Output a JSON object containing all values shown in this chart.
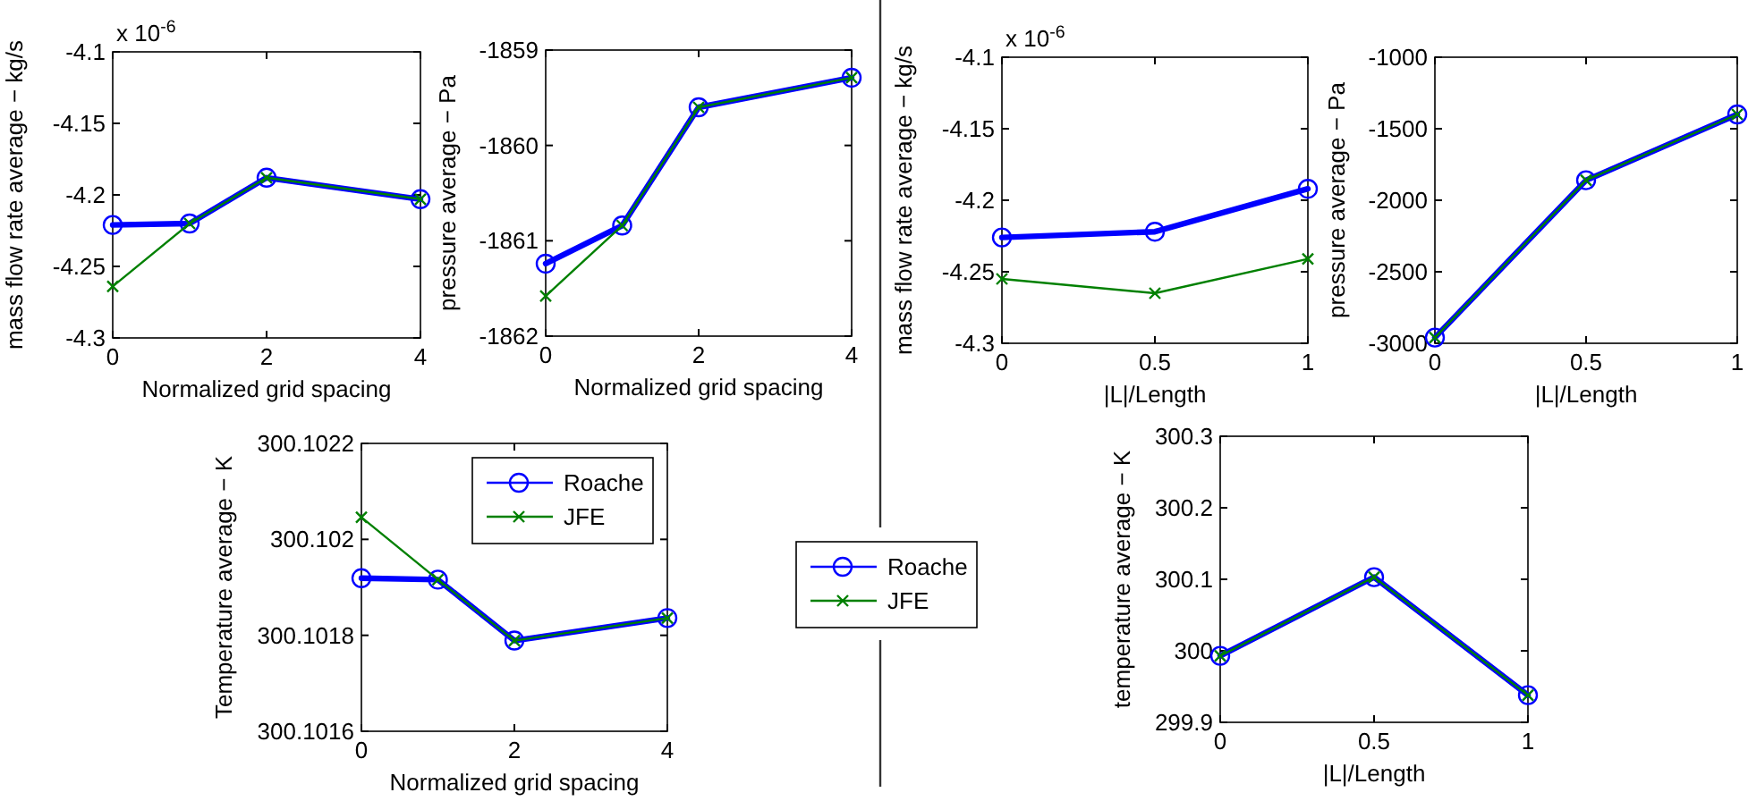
{
  "chart_data": [
    {
      "type": "line",
      "x": [
        0,
        1,
        2,
        4
      ],
      "xlim": [
        0,
        4
      ],
      "xticks": [
        0,
        2,
        4
      ],
      "ylim": [
        -4.3,
        -4.1
      ],
      "yticks": [
        -4.3,
        -4.25,
        -4.2,
        -4.15,
        -4.1
      ],
      "xlabel": "Normalized grid spacing",
      "ylabel": "mass flow rate average − kg/s",
      "annotations": [
        "x 10$^{-6}$"
      ],
      "series": [
        {
          "color": "#0000ff",
          "marker": "circle",
          "values": [
            -4.221,
            -4.22,
            -4.188,
            -4.203
          ]
        },
        {
          "color": "#008000",
          "marker": "cross",
          "values": [
            -4.264,
            -4.22,
            -4.188,
            -4.203
          ]
        }
      ]
    },
    {
      "type": "line",
      "x": [
        0,
        1,
        2,
        4
      ],
      "xlim": [
        0,
        4
      ],
      "xticks": [
        0,
        2,
        4
      ],
      "ylim": [
        -1862,
        -1859
      ],
      "yticks": [
        -1862,
        -1861,
        -1860,
        -1859
      ],
      "xlabel": "Normalized grid spacing",
      "ylabel": "pressure average − Pa",
      "series": [
        {
          "color": "#0000ff",
          "marker": "circle",
          "values": [
            -1861.24,
            -1860.84,
            -1859.6,
            -1859.29
          ]
        },
        {
          "color": "#008000",
          "marker": "cross",
          "values": [
            -1861.58,
            -1860.84,
            -1859.6,
            -1859.29
          ]
        }
      ]
    },
    {
      "type": "line",
      "x": [
        0,
        0.5,
        1
      ],
      "xlim": [
        0,
        1
      ],
      "xticks": [
        0,
        0.5,
        1
      ],
      "ylim": [
        -4.3,
        -4.1
      ],
      "yticks": [
        -4.3,
        -4.25,
        -4.2,
        -4.15,
        -4.1
      ],
      "xlabel": "|L|/Length",
      "ylabel": "mass flow rate average − kg/s",
      "annotations": [
        "x 10$^{-6}$"
      ],
      "series": [
        {
          "color": "#0000ff",
          "marker": "circle",
          "values": [
            -4.226,
            -4.222,
            -4.192
          ]
        },
        {
          "color": "#008000",
          "marker": "cross",
          "values": [
            -4.255,
            -4.265,
            -4.241
          ]
        }
      ]
    },
    {
      "type": "line",
      "x": [
        0,
        0.5,
        1
      ],
      "xlim": [
        0,
        1
      ],
      "xticks": [
        0,
        0.5,
        1
      ],
      "ylim": [
        -3000,
        -1000
      ],
      "yticks": [
        -3000,
        -2500,
        -2000,
        -1500,
        -1000
      ],
      "xlabel": "|L|/Length",
      "ylabel": "pressure average − Pa",
      "series": [
        {
          "color": "#0000ff",
          "marker": "circle",
          "values": [
            -2960,
            -1860,
            -1400
          ]
        },
        {
          "color": "#008000",
          "marker": "cross",
          "values": [
            -2960,
            -1860,
            -1400
          ]
        }
      ]
    },
    {
      "type": "line",
      "x": [
        0,
        1,
        2,
        4
      ],
      "xlim": [
        0,
        4
      ],
      "xticks": [
        0,
        2,
        4
      ],
      "ylim": [
        300.1016,
        300.1022
      ],
      "yticks": [
        300.1016,
        300.1018,
        300.102,
        300.1022
      ],
      "xlabel": "Normalized grid spacing",
      "ylabel": "Temperature average − K",
      "legend": "top right",
      "series": [
        {
          "name": "Roache",
          "color": "#0000ff",
          "marker": "circle",
          "values": [
            300.101919,
            300.101916,
            300.101789,
            300.101836
          ]
        },
        {
          "name": "JFE",
          "color": "#008000",
          "marker": "cross",
          "values": [
            300.102046,
            300.101916,
            300.101789,
            300.101836
          ]
        }
      ]
    },
    {
      "type": "line",
      "x": [
        0,
        0.5,
        1
      ],
      "xlim": [
        0,
        1
      ],
      "xticks": [
        0,
        0.5,
        1
      ],
      "ylim": [
        299.9,
        300.3
      ],
      "yticks": [
        299.9,
        300,
        300.1,
        300.2,
        300.3
      ],
      "xlabel": "|L|/Length",
      "ylabel": "temperature average − K",
      "legend": "left",
      "series": [
        {
          "name": "Roache",
          "color": "#0000ff",
          "marker": "circle",
          "values": [
            299.993,
            300.103,
            299.938
          ]
        },
        {
          "name": "JFE",
          "color": "#008000",
          "marker": "cross",
          "values": [
            299.993,
            300.103,
            299.938
          ]
        }
      ]
    }
  ]
}
